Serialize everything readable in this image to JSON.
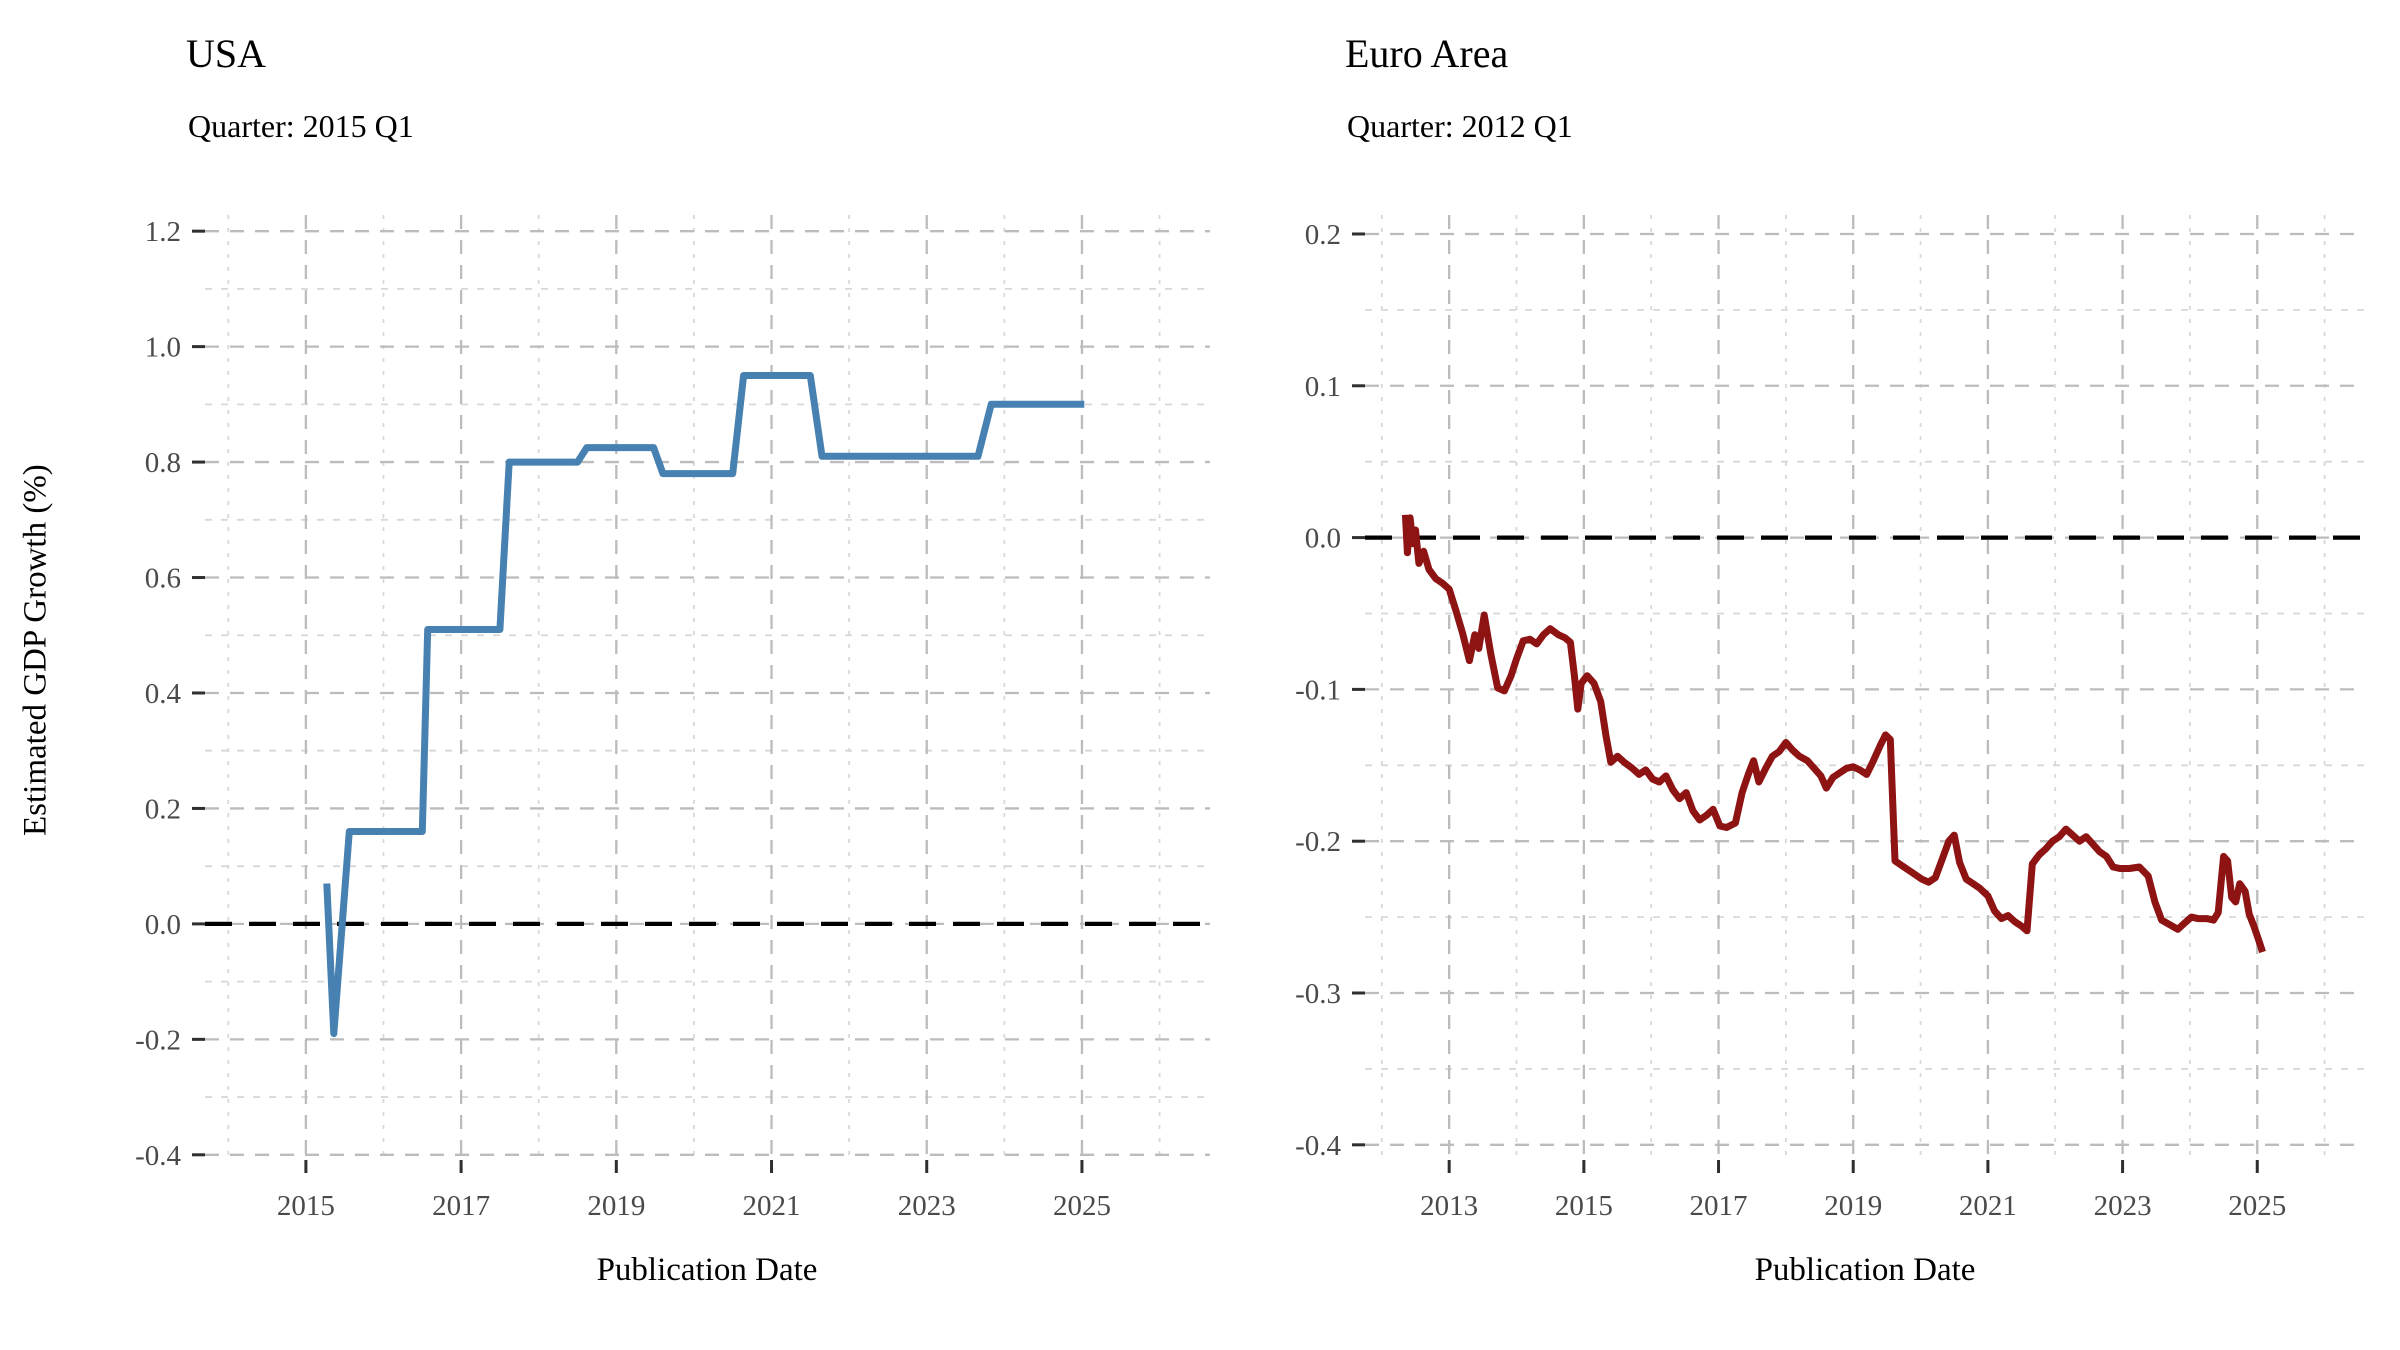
{
  "page": {
    "background": "#ffffff"
  },
  "axes": {
    "y_title": "Estimated GDP Growth (%)",
    "x_title": "Publication Date"
  },
  "style": {
    "grid_major_color": "#bcbcbc",
    "grid_minor_color": "#d8d8d8",
    "tick_label_color": "#4a4a4a",
    "tick_mark_color": "#2f2f2f",
    "zero_line_color": "#000000",
    "usa_line_color": "#4781b1",
    "euro_line_color": "#8e1313"
  },
  "chart_data": [
    {
      "type": "line",
      "panel": "usa",
      "title": "USA",
      "subtitle": "Quarter: 2015 Q1",
      "xlabel": "Publication Date",
      "ylabel": "Estimated GDP Growth (%)",
      "line_color": "#4781b1",
      "line_width": 7,
      "zero_line": true,
      "grid": true,
      "legend": "none",
      "x_domain": [
        2013.7,
        2026.65
      ],
      "y_domain": [
        1.228,
        -0.409
      ],
      "x_ticks": [
        {
          "v": 2015,
          "t": "2015"
        },
        {
          "v": 2017,
          "t": "2017"
        },
        {
          "v": 2019,
          "t": "2019"
        },
        {
          "v": 2021,
          "t": "2021"
        },
        {
          "v": 2023,
          "t": "2023"
        },
        {
          "v": 2025,
          "t": "2025"
        }
      ],
      "x_minor": [
        2014,
        2016,
        2018,
        2020,
        2022,
        2024,
        2026
      ],
      "y_ticks": [
        {
          "v": 1.2,
          "t": "1.2"
        },
        {
          "v": 1.0,
          "t": "1.0"
        },
        {
          "v": 0.8,
          "t": "0.8"
        },
        {
          "v": 0.6,
          "t": "0.6"
        },
        {
          "v": 0.4,
          "t": "0.4"
        },
        {
          "v": 0.2,
          "t": "0.2"
        },
        {
          "v": 0.0,
          "t": "0.0"
        },
        {
          "v": -0.2,
          "t": "-0.2"
        },
        {
          "v": -0.4,
          "t": "-0.4"
        }
      ],
      "y_minor": [
        1.1,
        0.9,
        0.7,
        0.5,
        0.3,
        0.1,
        -0.1,
        -0.3
      ],
      "series": [
        [
          2015.27,
          0.07
        ],
        [
          2015.36,
          -0.19
        ],
        [
          2015.56,
          0.16
        ],
        [
          2016.5,
          0.16
        ],
        [
          2016.57,
          0.51
        ],
        [
          2017.5,
          0.51
        ],
        [
          2017.62,
          0.8
        ],
        [
          2018.5,
          0.8
        ],
        [
          2018.62,
          0.825
        ],
        [
          2019.48,
          0.825
        ],
        [
          2019.6,
          0.78
        ],
        [
          2020.5,
          0.78
        ],
        [
          2020.64,
          0.95
        ],
        [
          2021.5,
          0.95
        ],
        [
          2021.65,
          0.81
        ],
        [
          2023.66,
          0.81
        ],
        [
          2023.83,
          0.9
        ],
        [
          2025.03,
          0.9
        ]
      ]
    },
    {
      "type": "line",
      "panel": "euro-area",
      "title": "Euro Area",
      "subtitle": "Quarter: 2012 Q1",
      "xlabel": "Publication Date",
      "ylabel": "Estimated GDP Growth (%)",
      "line_color": "#8e1313",
      "line_width": 7,
      "zero_line": true,
      "grid": true,
      "legend": "none",
      "x_domain": [
        2011.75,
        2026.6
      ],
      "y_domain": [
        0.2125,
        -0.41
      ],
      "x_ticks": [
        {
          "v": 2013,
          "t": "2013"
        },
        {
          "v": 2015,
          "t": "2015"
        },
        {
          "v": 2017,
          "t": "2017"
        },
        {
          "v": 2019,
          "t": "2019"
        },
        {
          "v": 2021,
          "t": "2021"
        },
        {
          "v": 2023,
          "t": "2023"
        },
        {
          "v": 2025,
          "t": "2025"
        }
      ],
      "x_minor": [
        2012,
        2014,
        2016,
        2018,
        2020,
        2022,
        2024,
        2026
      ],
      "y_ticks": [
        {
          "v": 0.2,
          "t": "0.2"
        },
        {
          "v": 0.1,
          "t": "0.1"
        },
        {
          "v": 0.0,
          "t": "0.0"
        },
        {
          "v": -0.1,
          "t": "-0.1"
        },
        {
          "v": -0.2,
          "t": "-0.2"
        },
        {
          "v": -0.3,
          "t": "-0.3"
        },
        {
          "v": -0.4,
          "t": "-0.4"
        }
      ],
      "y_minor": [
        0.15,
        0.05,
        -0.05,
        -0.15,
        -0.25,
        -0.35
      ],
      "series": [
        [
          2012.35,
          0.015
        ],
        [
          2012.38,
          -0.01
        ],
        [
          2012.42,
          0.013
        ],
        [
          2012.46,
          -0.004
        ],
        [
          2012.5,
          0.005
        ],
        [
          2012.55,
          -0.017
        ],
        [
          2012.62,
          -0.009
        ],
        [
          2012.7,
          -0.021
        ],
        [
          2012.8,
          -0.027
        ],
        [
          2012.9,
          -0.03
        ],
        [
          2013.0,
          -0.034
        ],
        [
          2013.1,
          -0.048
        ],
        [
          2013.2,
          -0.063
        ],
        [
          2013.3,
          -0.081
        ],
        [
          2013.38,
          -0.064
        ],
        [
          2013.44,
          -0.073
        ],
        [
          2013.52,
          -0.051
        ],
        [
          2013.62,
          -0.077
        ],
        [
          2013.72,
          -0.099
        ],
        [
          2013.82,
          -0.101
        ],
        [
          2013.92,
          -0.091
        ],
        [
          2014.0,
          -0.08
        ],
        [
          2014.1,
          -0.068
        ],
        [
          2014.2,
          -0.067
        ],
        [
          2014.3,
          -0.07
        ],
        [
          2014.4,
          -0.064
        ],
        [
          2014.5,
          -0.06
        ],
        [
          2014.62,
          -0.064
        ],
        [
          2014.72,
          -0.066
        ],
        [
          2014.8,
          -0.069
        ],
        [
          2014.86,
          -0.091
        ],
        [
          2014.91,
          -0.113
        ],
        [
          2014.96,
          -0.096
        ],
        [
          2015.05,
          -0.091
        ],
        [
          2015.15,
          -0.096
        ],
        [
          2015.25,
          -0.108
        ],
        [
          2015.33,
          -0.131
        ],
        [
          2015.4,
          -0.148
        ],
        [
          2015.5,
          -0.144
        ],
        [
          2015.6,
          -0.148
        ],
        [
          2015.72,
          -0.152
        ],
        [
          2015.82,
          -0.156
        ],
        [
          2015.92,
          -0.153
        ],
        [
          2016.02,
          -0.159
        ],
        [
          2016.12,
          -0.161
        ],
        [
          2016.22,
          -0.157
        ],
        [
          2016.32,
          -0.166
        ],
        [
          2016.42,
          -0.172
        ],
        [
          2016.52,
          -0.168
        ],
        [
          2016.62,
          -0.18
        ],
        [
          2016.72,
          -0.186
        ],
        [
          2016.82,
          -0.183
        ],
        [
          2016.92,
          -0.179
        ],
        [
          2017.02,
          -0.19
        ],
        [
          2017.12,
          -0.191
        ],
        [
          2017.25,
          -0.188
        ],
        [
          2017.35,
          -0.168
        ],
        [
          2017.45,
          -0.155
        ],
        [
          2017.52,
          -0.147
        ],
        [
          2017.6,
          -0.161
        ],
        [
          2017.7,
          -0.152
        ],
        [
          2017.8,
          -0.144
        ],
        [
          2017.9,
          -0.141
        ],
        [
          2018.0,
          -0.135
        ],
        [
          2018.1,
          -0.14
        ],
        [
          2018.2,
          -0.144
        ],
        [
          2018.32,
          -0.147
        ],
        [
          2018.42,
          -0.152
        ],
        [
          2018.52,
          -0.157
        ],
        [
          2018.6,
          -0.165
        ],
        [
          2018.7,
          -0.158
        ],
        [
          2018.8,
          -0.155
        ],
        [
          2018.9,
          -0.152
        ],
        [
          2019.0,
          -0.151
        ],
        [
          2019.1,
          -0.153
        ],
        [
          2019.2,
          -0.156
        ],
        [
          2019.3,
          -0.147
        ],
        [
          2019.4,
          -0.137
        ],
        [
          2019.48,
          -0.13
        ],
        [
          2019.55,
          -0.133
        ],
        [
          2019.62,
          -0.213
        ],
        [
          2019.72,
          -0.216
        ],
        [
          2019.82,
          -0.219
        ],
        [
          2019.92,
          -0.222
        ],
        [
          2020.02,
          -0.225
        ],
        [
          2020.12,
          -0.227
        ],
        [
          2020.22,
          -0.224
        ],
        [
          2020.32,
          -0.212
        ],
        [
          2020.42,
          -0.2
        ],
        [
          2020.5,
          -0.196
        ],
        [
          2020.58,
          -0.214
        ],
        [
          2020.68,
          -0.225
        ],
        [
          2020.78,
          -0.228
        ],
        [
          2020.88,
          -0.231
        ],
        [
          2021.0,
          -0.236
        ],
        [
          2021.1,
          -0.246
        ],
        [
          2021.2,
          -0.251
        ],
        [
          2021.3,
          -0.249
        ],
        [
          2021.4,
          -0.253
        ],
        [
          2021.5,
          -0.256
        ],
        [
          2021.58,
          -0.259
        ],
        [
          2021.66,
          -0.215
        ],
        [
          2021.76,
          -0.209
        ],
        [
          2021.86,
          -0.205
        ],
        [
          2021.96,
          -0.2
        ],
        [
          2022.06,
          -0.197
        ],
        [
          2022.16,
          -0.192
        ],
        [
          2022.26,
          -0.196
        ],
        [
          2022.36,
          -0.2
        ],
        [
          2022.46,
          -0.197
        ],
        [
          2022.56,
          -0.202
        ],
        [
          2022.66,
          -0.207
        ],
        [
          2022.76,
          -0.21
        ],
        [
          2022.86,
          -0.217
        ],
        [
          2022.96,
          -0.218
        ],
        [
          2023.1,
          -0.218
        ],
        [
          2023.25,
          -0.217
        ],
        [
          2023.38,
          -0.223
        ],
        [
          2023.48,
          -0.24
        ],
        [
          2023.58,
          -0.252
        ],
        [
          2023.7,
          -0.255
        ],
        [
          2023.82,
          -0.258
        ],
        [
          2023.92,
          -0.254
        ],
        [
          2024.02,
          -0.25
        ],
        [
          2024.12,
          -0.251
        ],
        [
          2024.25,
          -0.251
        ],
        [
          2024.35,
          -0.252
        ],
        [
          2024.42,
          -0.247
        ],
        [
          2024.5,
          -0.21
        ],
        [
          2024.56,
          -0.213
        ],
        [
          2024.62,
          -0.237
        ],
        [
          2024.68,
          -0.24
        ],
        [
          2024.74,
          -0.228
        ],
        [
          2024.82,
          -0.233
        ],
        [
          2024.88,
          -0.248
        ],
        [
          2024.95,
          -0.256
        ],
        [
          2025.02,
          -0.265
        ],
        [
          2025.08,
          -0.273
        ]
      ]
    }
  ]
}
